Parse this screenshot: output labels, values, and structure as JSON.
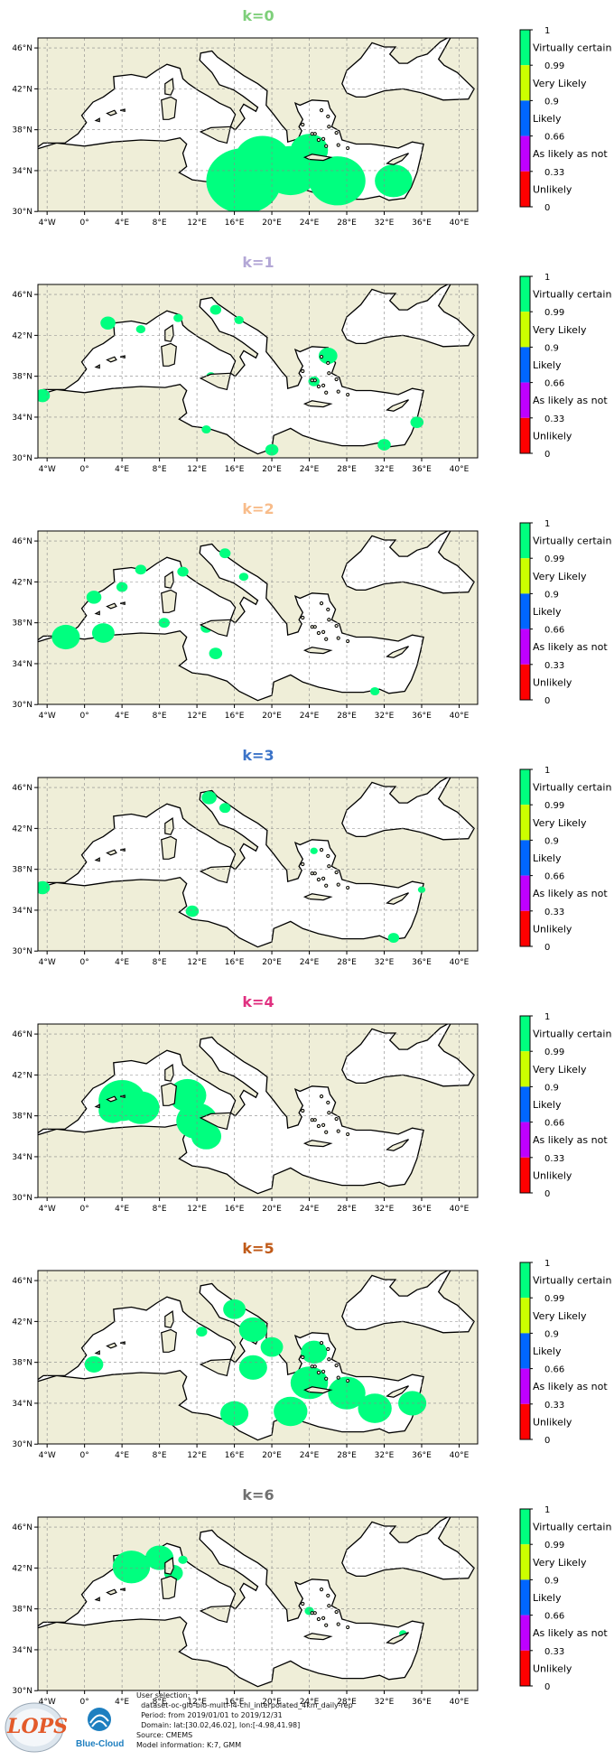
{
  "panels": [
    {
      "title": "k=0",
      "title_color": "#7ecf7a",
      "regions": [
        [
          17,
          33,
          4
        ],
        [
          19,
          35,
          3
        ],
        [
          22,
          34,
          3
        ],
        [
          27,
          33,
          3
        ],
        [
          24,
          36,
          2
        ],
        [
          33,
          33,
          2
        ]
      ]
    },
    {
      "title": "k=1",
      "title_color": "#b3a7d6",
      "regions": [
        [
          -4.5,
          36.1,
          0.8
        ],
        [
          2.5,
          43.2,
          0.8
        ],
        [
          6,
          42.6,
          0.5
        ],
        [
          10,
          43.7,
          0.5
        ],
        [
          14,
          44.5,
          0.6
        ],
        [
          16.5,
          43.5,
          0.5
        ],
        [
          13.5,
          38,
          0.5
        ],
        [
          26,
          40,
          1
        ],
        [
          24.5,
          37.5,
          0.6
        ],
        [
          32,
          31.3,
          0.7
        ],
        [
          35.5,
          33.5,
          0.7
        ],
        [
          20,
          30.8,
          0.7
        ],
        [
          13,
          32.8,
          0.5
        ]
      ]
    },
    {
      "title": "k=2",
      "title_color": "#f8bc8a",
      "regions": [
        [
          -2,
          36.6,
          1.5
        ],
        [
          2,
          37,
          1.2
        ],
        [
          1,
          40.5,
          0.8
        ],
        [
          4,
          41.5,
          0.6
        ],
        [
          6,
          43.2,
          0.6
        ],
        [
          8.5,
          38,
          0.6
        ],
        [
          10.5,
          43,
          0.6
        ],
        [
          15,
          44.8,
          0.6
        ],
        [
          17,
          42.5,
          0.5
        ],
        [
          13,
          37.5,
          0.6
        ],
        [
          14,
          35,
          0.7
        ],
        [
          31,
          31.3,
          0.5
        ]
      ]
    },
    {
      "title": "k=3",
      "title_color": "#3b73c8",
      "regions": [
        [
          -4.5,
          36.2,
          0.8
        ],
        [
          13.3,
          45,
          0.8
        ],
        [
          15,
          44,
          0.6
        ],
        [
          11.5,
          33.9,
          0.7
        ],
        [
          33,
          31.3,
          0.6
        ],
        [
          36,
          36,
          0.4
        ],
        [
          24.5,
          39.8,
          0.4
        ]
      ]
    },
    {
      "title": "k=4",
      "title_color": "#e03080",
      "regions": [
        [
          4,
          39.5,
          2.5
        ],
        [
          6,
          38.8,
          2
        ],
        [
          11,
          40,
          2
        ],
        [
          12,
          37.5,
          2.2
        ],
        [
          13,
          36,
          1.6
        ],
        [
          3,
          38.5,
          1.5
        ]
      ]
    },
    {
      "title": "k=5",
      "title_color": "#c05a18",
      "regions": [
        [
          16,
          43.2,
          1.2
        ],
        [
          18,
          41.2,
          1.5
        ],
        [
          20,
          39.5,
          1.2
        ],
        [
          18,
          37.5,
          1.5
        ],
        [
          24,
          36,
          2
        ],
        [
          28,
          35,
          2
        ],
        [
          22,
          33.2,
          1.8
        ],
        [
          31,
          33.5,
          1.8
        ],
        [
          35,
          34,
          1.5
        ],
        [
          16,
          33,
          1.5
        ],
        [
          12.5,
          41,
          0.6
        ],
        [
          1,
          37.8,
          1
        ],
        [
          24.5,
          39,
          1.4
        ]
      ]
    },
    {
      "title": "k=6",
      "title_color": "#707070",
      "regions": [
        [
          5,
          42.1,
          2
        ],
        [
          8,
          43,
          1.5
        ],
        [
          9.5,
          41.5,
          1
        ],
        [
          10.5,
          42.8,
          0.5
        ],
        [
          24,
          37.8,
          0.5
        ],
        [
          34,
          35.6,
          0.4
        ]
      ]
    }
  ],
  "map": {
    "land_color": "#efeed8",
    "ocean_color": "#ffffff",
    "class_color": "#00ff7f",
    "lat_ticks": [
      "46°N",
      "42°N",
      "38°N",
      "34°N",
      "30°N"
    ],
    "lon_ticks": [
      "4°W",
      "0°",
      "4°E",
      "8°E",
      "12°E",
      "16°E",
      "20°E",
      "24°E",
      "28°E",
      "32°E",
      "36°E",
      "40°E"
    ]
  },
  "colorbar": {
    "ticks": [
      "1",
      "0.99",
      "0.9",
      "0.66",
      "0.33",
      "0"
    ],
    "categories": [
      "Virtually certain",
      "Very Likely",
      "Likely",
      "As likely as not",
      "Unlikely"
    ],
    "colors": [
      "#00ff7f",
      "#ccff00",
      "#0066ff",
      "#bf00ff",
      "#ff0000"
    ]
  },
  "footer": {
    "lines": [
      "User selection:",
      "  dataset-oc-glo-bio-multi-l4-chl_interpolated_4km_daily-rep",
      "  Period: from 2019/01/01 to 2019/12/31",
      "  Domain: lat:[30.02,46.02], lon:[-4.98,41.98]",
      "Source: CMEMS",
      "Model information: K:7, GMM"
    ],
    "logo_lops": "LOPS",
    "logo_bluecloud": "Blue-Cloud"
  }
}
